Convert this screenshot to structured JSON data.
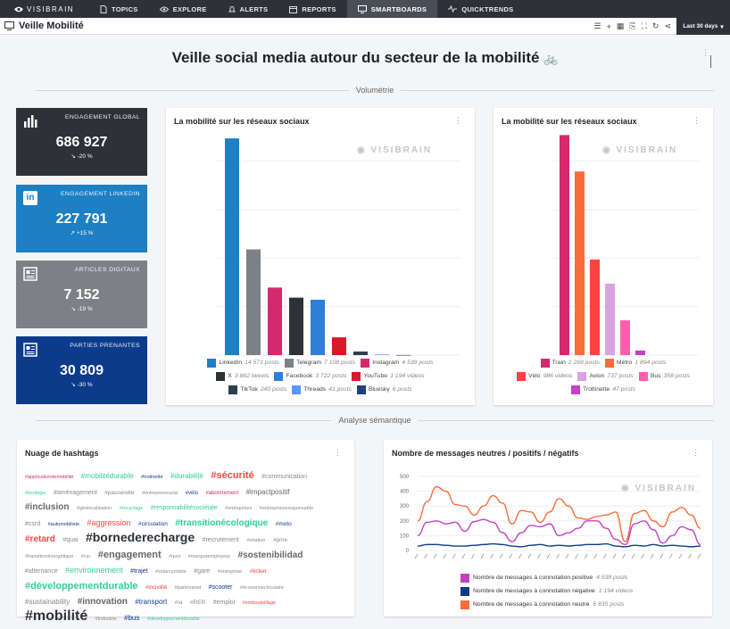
{
  "nav": {
    "brand": "VISIBRAIN",
    "items": [
      {
        "label": "TOPICS",
        "icon": "document-icon"
      },
      {
        "label": "EXPLORE",
        "icon": "eye-icon"
      },
      {
        "label": "ALERTS",
        "icon": "bell-icon"
      },
      {
        "label": "REPORTS",
        "icon": "calendar-icon"
      },
      {
        "label": "SMARTBOARDS",
        "icon": "monitor-icon"
      },
      {
        "label": "QUICKTRENDS",
        "icon": "pulse-icon"
      }
    ]
  },
  "page": {
    "title": "Veille Mobilité",
    "period": "Last 30 days",
    "headline": "Veille social media autour du secteur de la mobilité"
  },
  "sections": {
    "volumetrie": "Volumétrie",
    "semantique": "Analyse sémantique"
  },
  "kpis": [
    {
      "label": "ENGAGEMENT GLOBAL",
      "value": "686 927",
      "variation": "-20 %",
      "color": "#2e3238"
    },
    {
      "label": "ENGAGEMENT LINKEDIN",
      "value": "227 791",
      "variation": "+15 %",
      "color": "#1d7fc4"
    },
    {
      "label": "ARTICLES DIGITAUX",
      "value": "7 152",
      "variation": "-19 %",
      "color": "#7d8086"
    },
    {
      "label": "PARTIES PRENANTES",
      "value": "30 809",
      "variation": "-30 %",
      "color": "#0d3b8c"
    }
  ],
  "watermark": "VISIBRAIN",
  "chart_data": [
    {
      "type": "bar",
      "title": "La mobilité sur les réseaux sociaux",
      "categories": [
        "LinkedIn",
        "Telegram",
        "Instagram",
        "X",
        "Facebook",
        "YouTube",
        "TikTok",
        "Threads",
        "Bluesky"
      ],
      "values": [
        14571,
        7108,
        4539,
        3862,
        3722,
        1194,
        240,
        41,
        6
      ],
      "units": [
        "posts",
        "posts",
        "posts",
        "tweets",
        "posts",
        "videos",
        "posts",
        "posts",
        "posts"
      ],
      "colors": [
        "#1d7fc4",
        "#7d8086",
        "#d6286e",
        "#2e3238",
        "#2f7fd8",
        "#d9182b",
        "#2e3e4c",
        "#5b95ff",
        "#1e3f80"
      ],
      "ylim": [
        0,
        15000
      ]
    },
    {
      "type": "bar",
      "title": "La mobilité sur les réseaux sociaux",
      "categories": [
        "Train",
        "Métro",
        "Vélo",
        "Avion",
        "Bus",
        "Trottinette"
      ],
      "values": [
        2269,
        1894,
        986,
        737,
        358,
        47
      ],
      "units": [
        "posts",
        "posts",
        "videos",
        "posts",
        "posts",
        "posts"
      ],
      "colors": [
        "#d6286e",
        "#fa6d3a",
        "#ff4242",
        "#d9a2e2",
        "#ff5fae",
        "#c341c3"
      ],
      "ylim": [
        0,
        2300
      ]
    },
    {
      "type": "line",
      "title": "Nombre de messages neutres / positifs / négatifs",
      "ylim": [
        0,
        500
      ],
      "yticks": [
        0,
        100,
        200,
        300,
        400,
        500
      ],
      "series": [
        {
          "name": "Nombre de messages à connotation positive",
          "total": "4 538 posts",
          "color": "#c341c3",
          "values": [
            100,
            190,
            200,
            180,
            190,
            130,
            195,
            210,
            190,
            120,
            60,
            120,
            170,
            160,
            180,
            100,
            120,
            150,
            200,
            200,
            150,
            75,
            40,
            180,
            200,
            140,
            50,
            100,
            160,
            140,
            40
          ]
        },
        {
          "name": "Nombre de messages à connotation négative",
          "total": "1 194 videos",
          "color": "#0d3b8c",
          "values": [
            30,
            40,
            40,
            35,
            30,
            30,
            35,
            40,
            45,
            40,
            30,
            25,
            35,
            40,
            30,
            35,
            30,
            35,
            40,
            40,
            45,
            30,
            25,
            35,
            30,
            40,
            30,
            35,
            30,
            25,
            30
          ]
        },
        {
          "name": "Nombre de messages à connotation neutre",
          "total": "6 835 posts",
          "color": "#fa6d3a",
          "values": [
            200,
            330,
            430,
            400,
            310,
            300,
            240,
            300,
            370,
            320,
            180,
            270,
            260,
            190,
            260,
            350,
            300,
            220,
            210,
            230,
            240,
            260,
            60,
            250,
            270,
            200,
            160,
            260,
            290,
            240,
            150
          ]
        }
      ]
    }
  ],
  "hashtag_cloud": {
    "title": "Nuage de hashtags",
    "tags": [
      {
        "t": "#applicationdemobilité",
        "s": 5.5,
        "c": "#d6286e"
      },
      {
        "t": "#mobilitédurable",
        "s": 8,
        "c": "#33cc99"
      },
      {
        "t": "#trotinette",
        "s": 5.5,
        "c": "#0d3b8c"
      },
      {
        "t": "#durabilité",
        "s": 8,
        "c": "#33cc99"
      },
      {
        "t": "#sécurité",
        "s": 11,
        "c": "#ff4242"
      },
      {
        "t": "#communication",
        "s": 7,
        "c": "#888888"
      },
      {
        "t": "#écologie",
        "s": 5.5,
        "c": "#33cc99"
      },
      {
        "t": "#aménagement",
        "s": 7,
        "c": "#888888"
      },
      {
        "t": "#passerelle",
        "s": 6.5,
        "c": "#888888"
      },
      {
        "t": "#entrepreneuriat",
        "s": 5.5,
        "c": "#888888"
      },
      {
        "t": "#vélo",
        "s": 6,
        "c": "#0d3b8c"
      },
      {
        "t": "#abonnement",
        "s": 6,
        "c": "#d6286e"
      },
      {
        "t": "#impactpositif",
        "s": 8,
        "c": "#666666"
      },
      {
        "t": "#inclusion",
        "s": 10,
        "c": "#666666"
      },
      {
        "t": "#géolocalisation",
        "s": 5.5,
        "c": "#888888"
      },
      {
        "t": "#recyclage",
        "s": 5.5,
        "c": "#33cc99"
      },
      {
        "t": "#responsabilitésociétale",
        "s": 7,
        "c": "#33cc99"
      },
      {
        "t": "#entreprises",
        "s": 5.5,
        "c": "#888888"
      },
      {
        "t": "#entreprisesresponsable",
        "s": 5.5,
        "c": "#888888"
      },
      {
        "t": "#csrd",
        "s": 7,
        "c": "#888888"
      },
      {
        "t": "#automobiliste",
        "s": 5.5,
        "c": "#0d3b8c"
      },
      {
        "t": "#aggression",
        "s": 9,
        "c": "#ff4242"
      },
      {
        "t": "#circulation",
        "s": 6.5,
        "c": "#0d3b8c"
      },
      {
        "t": "#transitionécologique",
        "s": 10,
        "c": "#33cc99"
      },
      {
        "t": "#moto",
        "s": 6.5,
        "c": "#0d3b8c"
      },
      {
        "t": "#retard",
        "s": 10,
        "c": "#ff4242"
      },
      {
        "t": "#quai",
        "s": 7,
        "c": "#888888"
      },
      {
        "t": "#bornederecharge",
        "s": 14,
        "c": "#2e3238"
      },
      {
        "t": "#recrutement",
        "s": 7,
        "c": "#888888"
      },
      {
        "t": "#relation",
        "s": 5.5,
        "c": "#888888"
      },
      {
        "t": "#pme",
        "s": 6.5,
        "c": "#888888"
      },
      {
        "t": "#transitionénergétique",
        "s": 5.5,
        "c": "#888888"
      },
      {
        "t": "#csr",
        "s": 5.5,
        "c": "#888888"
      },
      {
        "t": "#engagement",
        "s": 11,
        "c": "#666666"
      },
      {
        "t": "#qvct",
        "s": 5.5,
        "c": "#888888"
      },
      {
        "t": "#marqueemployeur",
        "s": 5.5,
        "c": "#888888"
      },
      {
        "t": "#sostenibilidad",
        "s": 10,
        "c": "#666666"
      },
      {
        "t": "#alternance",
        "s": 7,
        "c": "#888888"
      },
      {
        "t": "#environnement",
        "s": 9,
        "c": "#33cc99"
      },
      {
        "t": "#trajet",
        "s": 7,
        "c": "#0d3b8c"
      },
      {
        "t": "#solarcyclable",
        "s": 5.5,
        "c": "#888888"
      },
      {
        "t": "#gare",
        "s": 7,
        "c": "#888888"
      },
      {
        "t": "#entreprise",
        "s": 5.5,
        "c": "#888888"
      },
      {
        "t": "#ticket",
        "s": 6.5,
        "c": "#ff4242"
      },
      {
        "t": "#développementdurable",
        "s": 11,
        "c": "#33cc99"
      },
      {
        "t": "#incivilité",
        "s": 6,
        "c": "#ff4242"
      },
      {
        "t": "#partenariat",
        "s": 5.5,
        "c": "#888888"
      },
      {
        "t": "#scooter",
        "s": 7,
        "c": "#0d3b8c"
      },
      {
        "t": "#économiecirculaire",
        "s": 5.5,
        "c": "#888888"
      },
      {
        "t": "#sustainability",
        "s": 8,
        "c": "#888888"
      },
      {
        "t": "#innovation",
        "s": 10,
        "c": "#666666"
      },
      {
        "t": "#transport",
        "s": 8,
        "c": "#0d3b8c"
      },
      {
        "t": "#ia",
        "s": 6.5,
        "c": "#888888"
      },
      {
        "t": "#RER",
        "s": 6.5,
        "c": "#888888"
      },
      {
        "t": "#emploi",
        "s": 7,
        "c": "#888888"
      },
      {
        "t": "#embouteillage",
        "s": 5.5,
        "c": "#ff4242"
      },
      {
        "t": "#mobilité",
        "s": 16,
        "c": "#2e3238"
      },
      {
        "t": "#industrie",
        "s": 5.5,
        "c": "#888888"
      },
      {
        "t": "#bus",
        "s": 8,
        "c": "#0d3b8c"
      },
      {
        "t": "#developpementdurable",
        "s": 5.5,
        "c": "#33cc99"
      }
    ]
  }
}
